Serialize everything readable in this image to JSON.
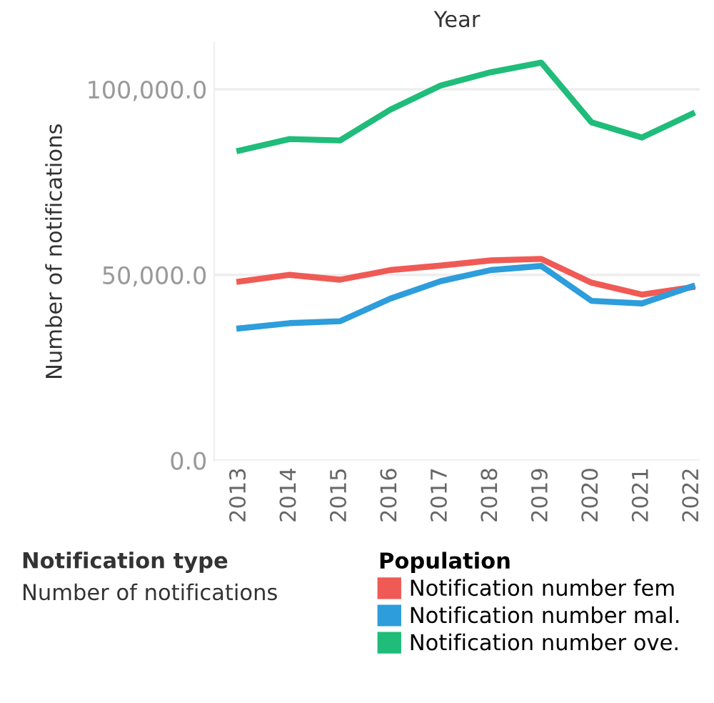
{
  "chart_data": {
    "type": "line",
    "xlabel": "Year",
    "ylabel": "Number of notifications",
    "legend_title": "Population",
    "categories": [
      "2013",
      "2014",
      "2015",
      "2016",
      "2017",
      "2018",
      "2019",
      "2020",
      "2021",
      "2022"
    ],
    "series": [
      {
        "name": "Notification number fem",
        "color": "#f05a55",
        "values": [
          48200,
          50000,
          48700,
          51300,
          52500,
          53900,
          54300,
          47900,
          44700,
          46700
        ]
      },
      {
        "name": "Notification number mal.",
        "color": "#2d9ddb",
        "values": [
          35600,
          37000,
          37500,
          43600,
          48300,
          51300,
          52400,
          43000,
          42300,
          46900
        ]
      },
      {
        "name": "Notification number ove.",
        "color": "#1fbc7a",
        "values": [
          83500,
          86600,
          86200,
          94500,
          101000,
          104600,
          107200,
          91100,
          87000,
          93400
        ]
      }
    ],
    "ylim": [
      0,
      112500
    ],
    "yticks": [
      {
        "value": 0,
        "label": "0.0"
      },
      {
        "value": 50000,
        "label": "50,000.0"
      },
      {
        "value": 100000,
        "label": "100,000.0"
      }
    ],
    "grid": "y",
    "legend": "bottom",
    "marker": "none",
    "line_style": "solid",
    "annotations": [
      "Notification type",
      "Number of notifications"
    ]
  }
}
